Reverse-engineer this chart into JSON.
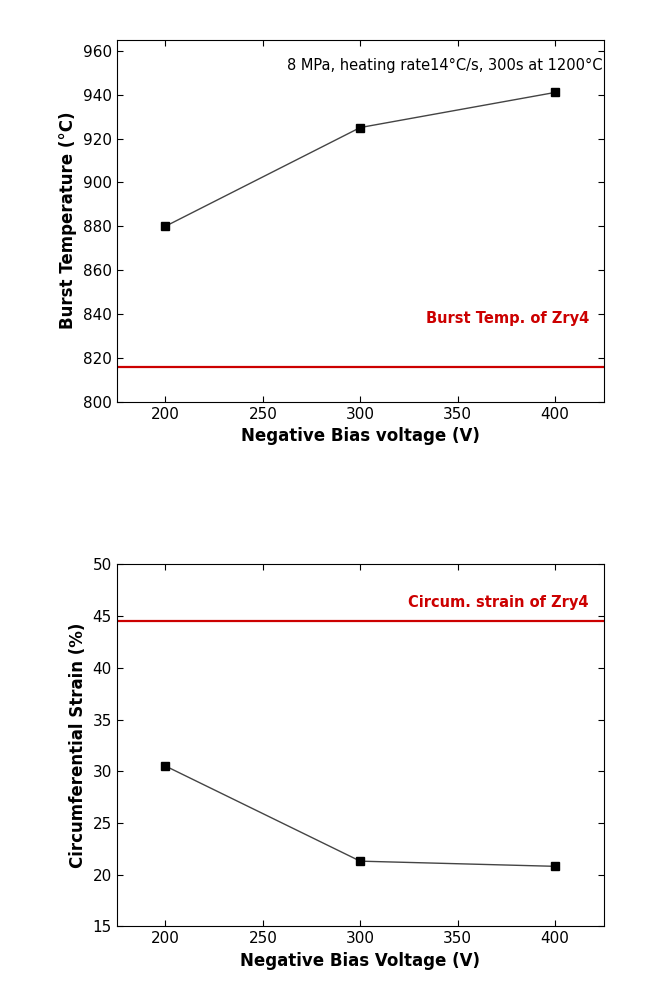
{
  "plot1": {
    "x": [
      200,
      300,
      400
    ],
    "y": [
      880,
      925,
      941
    ],
    "xlabel": "Negative Bias voltage (V)",
    "ylabel": "Burst Temperature (°C)",
    "xlim": [
      175,
      425
    ],
    "ylim": [
      800,
      965
    ],
    "yticks": [
      800,
      820,
      840,
      860,
      880,
      900,
      920,
      940,
      960
    ],
    "xticks": [
      200,
      250,
      300,
      350,
      400
    ],
    "hline_y": 816,
    "hline_color": "#cc0000",
    "hline_label": "Burst Temp. of Zry4",
    "annotation": "8 MPa, heating rate14°C/s, 300s at 1200°C"
  },
  "plot2": {
    "x": [
      200,
      300,
      400
    ],
    "y": [
      30.5,
      21.3,
      20.8
    ],
    "xlabel": "Negative Bias Voltage (V)",
    "ylabel": "Circumferential Strain (%)",
    "xlim": [
      175,
      425
    ],
    "ylim": [
      15,
      50
    ],
    "yticks": [
      15,
      20,
      25,
      30,
      35,
      40,
      45,
      50
    ],
    "xticks": [
      200,
      250,
      300,
      350,
      400
    ],
    "hline_y": 44.5,
    "hline_color": "#cc0000",
    "hline_label": "Circum. strain of Zry4"
  },
  "marker": "s",
  "marker_color": "black",
  "marker_size": 6,
  "line_color": "#444444",
  "line_width": 1.0,
  "label_fontsize": 12,
  "tick_fontsize": 11,
  "annotation_fontsize": 10.5,
  "ref_label_fontsize": 10.5,
  "fig_width": 6.49,
  "fig_height": 9.96,
  "fig_dpi": 100
}
